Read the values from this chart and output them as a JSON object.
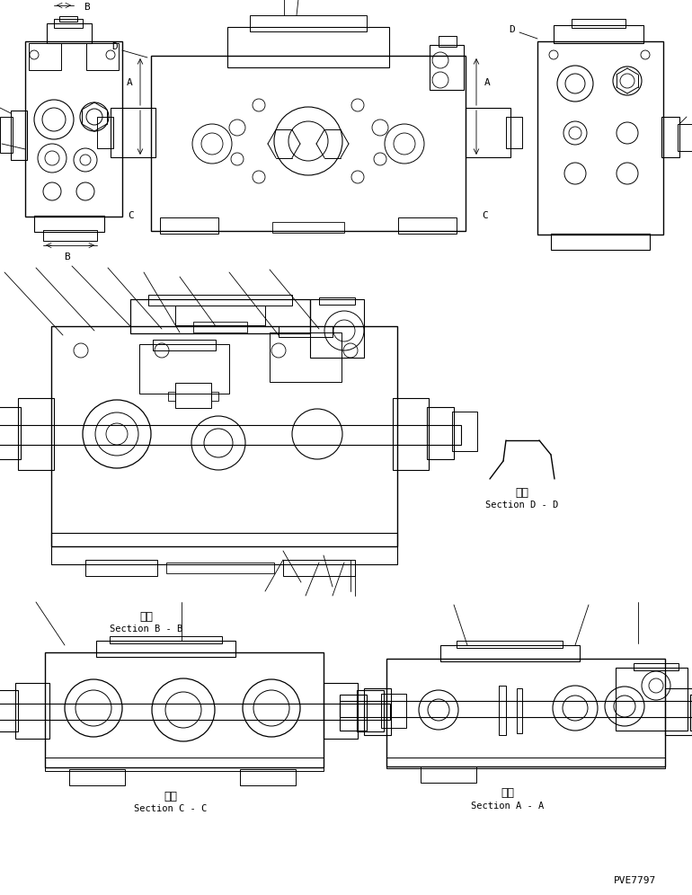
{
  "bg": "#ffffff",
  "lc": "#000000",
  "fig_w": 7.7,
  "fig_h": 9.96,
  "dpi": 100,
  "labels": {
    "B": "B",
    "D": "D",
    "A": "A",
    "C": "C",
    "sec_bb_k": "断面",
    "sec_bb": "Section B - B",
    "sec_dd_k": "断面",
    "sec_dd": "Section D - D",
    "sec_cc_k": "断面",
    "sec_cc": "Section C - C",
    "sec_aa_k": "断面",
    "sec_aa": "Section A - A",
    "pn": "PVE7797"
  }
}
